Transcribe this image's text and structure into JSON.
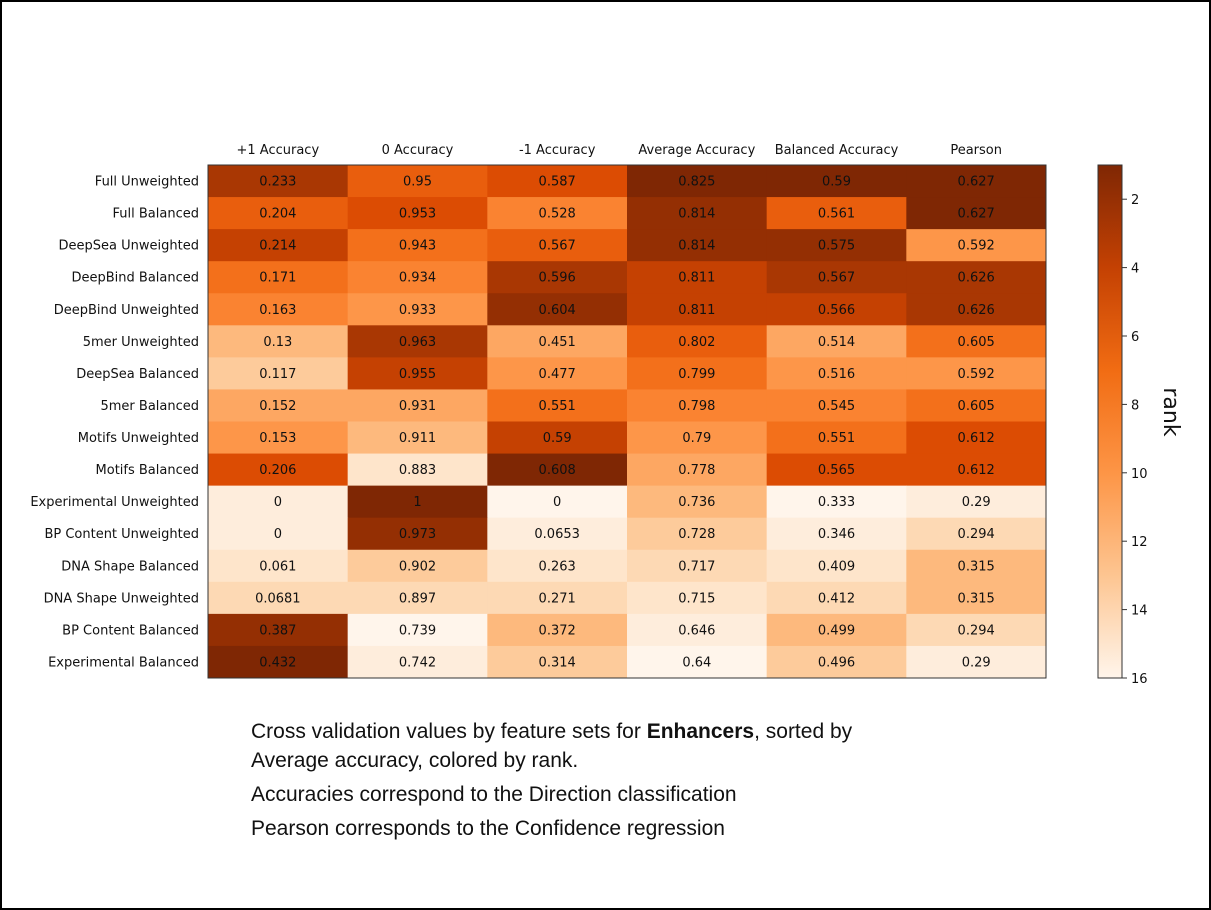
{
  "chart_data": {
    "type": "heatmap",
    "columns": [
      "+1 Accuracy",
      "0 Accuracy",
      "-1 Accuracy",
      "Average Accuracy",
      "Balanced Accuracy",
      "Pearson"
    ],
    "rows": [
      "Full Unweighted",
      "Full Balanced",
      "DeepSea Unweighted",
      "DeepBind Balanced",
      "DeepBind Unweighted",
      "5mer Unweighted",
      "DeepSea Balanced",
      "5mer Balanced",
      "Motifs Unweighted",
      "Motifs Balanced",
      "Experimental Unweighted",
      "BP Content Unweighted",
      "DNA Shape Balanced",
      "DNA Shape Unweighted",
      "BP Content Balanced",
      "Experimental Balanced"
    ],
    "values": [
      [
        "0.233",
        "0.95",
        "0.587",
        "0.825",
        "0.59",
        "0.627"
      ],
      [
        "0.204",
        "0.953",
        "0.528",
        "0.814",
        "0.561",
        "0.627"
      ],
      [
        "0.214",
        "0.943",
        "0.567",
        "0.814",
        "0.575",
        "0.592"
      ],
      [
        "0.171",
        "0.934",
        "0.596",
        "0.811",
        "0.567",
        "0.626"
      ],
      [
        "0.163",
        "0.933",
        "0.604",
        "0.811",
        "0.566",
        "0.626"
      ],
      [
        "0.13",
        "0.963",
        "0.451",
        "0.802",
        "0.514",
        "0.605"
      ],
      [
        "0.117",
        "0.955",
        "0.477",
        "0.799",
        "0.516",
        "0.592"
      ],
      [
        "0.152",
        "0.931",
        "0.551",
        "0.798",
        "0.545",
        "0.605"
      ],
      [
        "0.153",
        "0.911",
        "0.59",
        "0.79",
        "0.551",
        "0.612"
      ],
      [
        "0.206",
        "0.883",
        "0.608",
        "0.778",
        "0.565",
        "0.612"
      ],
      [
        "0",
        "1",
        "0",
        "0.736",
        "0.333",
        "0.29"
      ],
      [
        "0",
        "0.973",
        "0.0653",
        "0.728",
        "0.346",
        "0.294"
      ],
      [
        "0.061",
        "0.902",
        "0.263",
        "0.717",
        "0.409",
        "0.315"
      ],
      [
        "0.0681",
        "0.897",
        "0.271",
        "0.715",
        "0.412",
        "0.315"
      ],
      [
        "0.387",
        "0.739",
        "0.372",
        "0.646",
        "0.499",
        "0.294"
      ],
      [
        "0.432",
        "0.742",
        "0.314",
        "0.64",
        "0.496",
        "0.29"
      ]
    ],
    "colorbar": {
      "label": "rank",
      "range": [
        1,
        16
      ],
      "ticks": [
        "2",
        "4",
        "6",
        "8",
        "10",
        "12",
        "14",
        "16"
      ],
      "reversed": true,
      "colormap": "Oranges",
      "low_rank_color": "#7f2704",
      "high_rank_color": "#fff5eb"
    }
  },
  "caption": {
    "line1_before": "Cross validation values by feature sets for ",
    "line1_bold": "Enhancers",
    "line1_after": ", sorted by",
    "line2": "Average accuracy, colored by rank.",
    "line3": "Accuracies correspond to the Direction classification",
    "line4": "Pearson corresponds to the Confidence regression"
  }
}
